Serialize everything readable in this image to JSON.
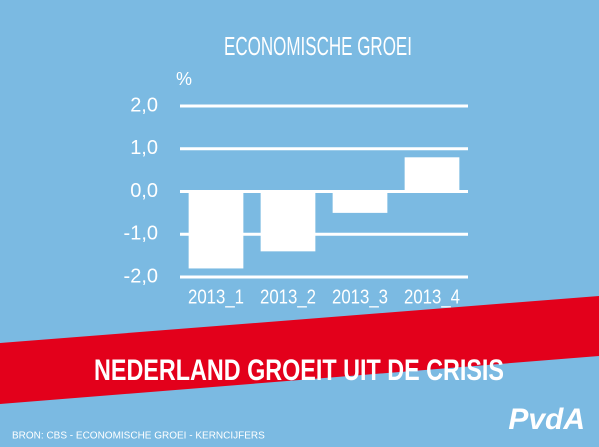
{
  "chart_data": {
    "type": "bar",
    "title": "ECONOMISCHE GROEI",
    "y_unit": "%",
    "categories": [
      "2013_1",
      "2013_2",
      "2013_3",
      "2013_4"
    ],
    "values": [
      -1.8,
      -1.4,
      -0.5,
      0.8
    ],
    "color": "#ffffff",
    "ylim": [
      -2,
      2
    ],
    "yticks": [
      {
        "value": -2,
        "label": "-2,0"
      },
      {
        "value": -1,
        "label": "-1,0"
      },
      {
        "value": 0,
        "label": "0,0"
      },
      {
        "value": 1,
        "label": "1,0"
      },
      {
        "value": 2,
        "label": "2,0"
      }
    ],
    "grid": true
  },
  "banner": "NEDERLAND GROEIT UIT DE CRISIS",
  "source": "BRON: CBS - ECONOMISCHE GROEI - KERNCIJFERS",
  "logo": "PvdA"
}
